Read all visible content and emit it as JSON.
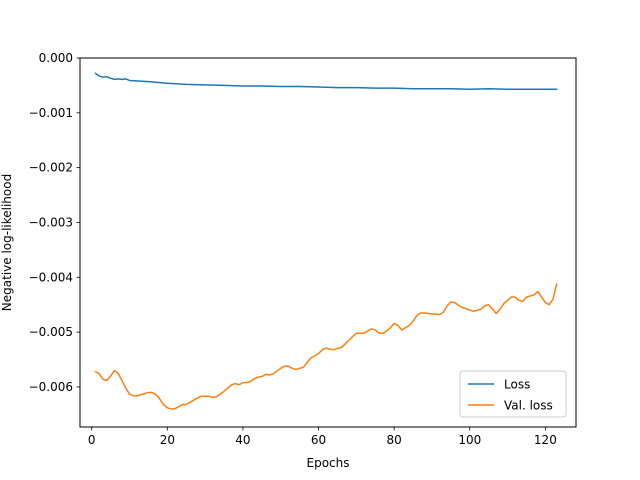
{
  "chart_data": {
    "type": "line",
    "title": "",
    "xlabel": "Epochs",
    "ylabel": "Negative log-likelihood",
    "xlim": [
      -3.1,
      128.1
    ],
    "ylim": [
      -0.00673,
      0.0
    ],
    "xticks": [
      0,
      20,
      40,
      60,
      80,
      100,
      120
    ],
    "xtick_labels": [
      "0",
      "20",
      "40",
      "60",
      "80",
      "100",
      "120"
    ],
    "yticks": [
      0.0,
      -0.001,
      -0.002,
      -0.003,
      -0.004,
      -0.005,
      -0.006
    ],
    "ytick_labels": [
      "0.000",
      "−0.001",
      "−0.002",
      "−0.003",
      "−0.004",
      "−0.005",
      "−0.006"
    ],
    "grid": false,
    "legend_position": "lower-right",
    "series": [
      {
        "name": "Loss",
        "color": "#1f77b4",
        "x": [
          1,
          2,
          3,
          4,
          5,
          6,
          7,
          8,
          9,
          10,
          15,
          20,
          25,
          30,
          35,
          40,
          45,
          50,
          55,
          60,
          65,
          70,
          75,
          80,
          85,
          90,
          95,
          100,
          105,
          110,
          115,
          120,
          123
        ],
        "y": [
          -0.00028,
          -0.00033,
          -0.00035,
          -0.00034,
          -0.00037,
          -0.00039,
          -0.00038,
          -0.00039,
          -0.00038,
          -0.00041,
          -0.00043,
          -0.00046,
          -0.00048,
          -0.00049,
          -0.0005,
          -0.00051,
          -0.00051,
          -0.00052,
          -0.00052,
          -0.00053,
          -0.00054,
          -0.00054,
          -0.00055,
          -0.00055,
          -0.00056,
          -0.00056,
          -0.00056,
          -0.00057,
          -0.00056,
          -0.00057,
          -0.00057,
          -0.00057,
          -0.00057
        ]
      },
      {
        "name": "Val. loss",
        "color": "#ff7f0e",
        "x": [
          1,
          2,
          3,
          4,
          5,
          6,
          7,
          8,
          9,
          10,
          11,
          12,
          13,
          14,
          15,
          16,
          17,
          18,
          19,
          20,
          21,
          22,
          23,
          24,
          25,
          26,
          27,
          28,
          29,
          30,
          31,
          32,
          33,
          34,
          35,
          36,
          37,
          38,
          39,
          40,
          41,
          42,
          43,
          44,
          45,
          46,
          47,
          48,
          49,
          50,
          51,
          52,
          53,
          54,
          55,
          56,
          57,
          58,
          59,
          60,
          61,
          62,
          63,
          64,
          65,
          66,
          67,
          68,
          69,
          70,
          71,
          72,
          73,
          74,
          75,
          76,
          77,
          78,
          79,
          80,
          81,
          82,
          83,
          84,
          85,
          86,
          87,
          88,
          89,
          90,
          91,
          92,
          93,
          94,
          95,
          96,
          97,
          98,
          99,
          100,
          101,
          102,
          103,
          104,
          105,
          106,
          107,
          108,
          109,
          110,
          111,
          112,
          113,
          114,
          115,
          116,
          117,
          118,
          119,
          120,
          121,
          122,
          123
        ],
        "y": [
          -0.00572,
          -0.00576,
          -0.00586,
          -0.00588,
          -0.0058,
          -0.0057,
          -0.00575,
          -0.00588,
          -0.00602,
          -0.00613,
          -0.00616,
          -0.00616,
          -0.00614,
          -0.00612,
          -0.0061,
          -0.0061,
          -0.00614,
          -0.00622,
          -0.00632,
          -0.00638,
          -0.0064,
          -0.0064,
          -0.00636,
          -0.00632,
          -0.00632,
          -0.00628,
          -0.00624,
          -0.0062,
          -0.00617,
          -0.00617,
          -0.00617,
          -0.00619,
          -0.00618,
          -0.00613,
          -0.00608,
          -0.00602,
          -0.00596,
          -0.00594,
          -0.00596,
          -0.00592,
          -0.00592,
          -0.0059,
          -0.00585,
          -0.00582,
          -0.00581,
          -0.00577,
          -0.00578,
          -0.00576,
          -0.00571,
          -0.00566,
          -0.00562,
          -0.00562,
          -0.00566,
          -0.00568,
          -0.00566,
          -0.00564,
          -0.00555,
          -0.00547,
          -0.00543,
          -0.00539,
          -0.00532,
          -0.00529,
          -0.00531,
          -0.00532,
          -0.0053,
          -0.00528,
          -0.00522,
          -0.00515,
          -0.00508,
          -0.00502,
          -0.00502,
          -0.00502,
          -0.00498,
          -0.00494,
          -0.00496,
          -0.00502,
          -0.00502,
          -0.00498,
          -0.00492,
          -0.00484,
          -0.00488,
          -0.00496,
          -0.00492,
          -0.00488,
          -0.0048,
          -0.0047,
          -0.00465,
          -0.00465,
          -0.00466,
          -0.00467,
          -0.00467,
          -0.00468,
          -0.00464,
          -0.00452,
          -0.00445,
          -0.00446,
          -0.00451,
          -0.00455,
          -0.00457,
          -0.0046,
          -0.00462,
          -0.0046,
          -0.00458,
          -0.00452,
          -0.0045,
          -0.00458,
          -0.00466,
          -0.00458,
          -0.00448,
          -0.00442,
          -0.00436,
          -0.00436,
          -0.00442,
          -0.00444,
          -0.00436,
          -0.00434,
          -0.00432,
          -0.00426,
          -0.00436,
          -0.00446,
          -0.0045,
          -0.0044,
          -0.00412
        ]
      }
    ]
  }
}
